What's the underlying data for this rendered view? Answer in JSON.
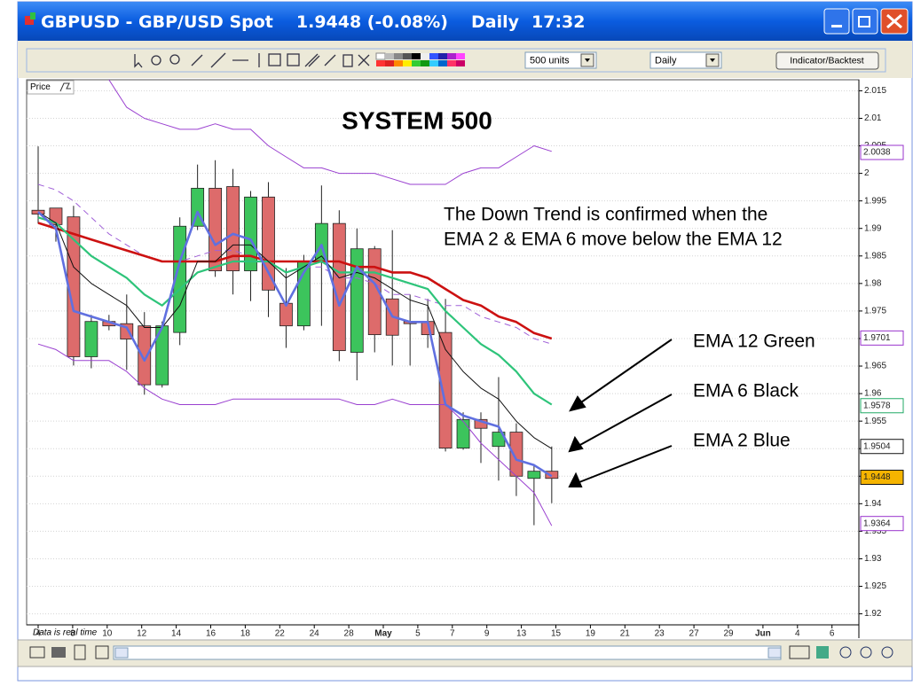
{
  "window": {
    "title": [
      "GBPUSD - GBP/USD Spot",
      "1.9448 (-0.08%)",
      "Daily",
      "17:32"
    ]
  },
  "toolbar": {
    "units": "500 units",
    "period": "Daily",
    "button": "Indicator/Backtest"
  },
  "chart_data": {
    "type": "candlestick",
    "title": "SYSTEM 500",
    "price_label": "Price",
    "footnote": "Data is real time",
    "annotations": {
      "trend": [
        "The Down Trend is confirmed when the",
        "EMA 2 & EMA 6 move below the EMA 12"
      ],
      "labels": [
        "EMA 12 Green",
        "EMA 6 Black",
        "EMA 2 Blue"
      ]
    },
    "x_labels": [
      "4",
      "8",
      "10",
      "12",
      "14",
      "16",
      "18",
      "22",
      "24",
      "28",
      "May",
      "5",
      "7",
      "9",
      "13",
      "15",
      "19",
      "21",
      "23",
      "27",
      "29",
      "Jun",
      "4",
      "6"
    ],
    "open": [
      1.9933,
      1.9937,
      1.9921,
      1.9667,
      1.9731,
      1.9727,
      1.9723,
      1.9616,
      1.9711,
      1.9904,
      1.9973,
      1.9976,
      1.9823,
      1.9957,
      1.9764,
      1.9723,
      1.9841,
      1.9909,
      1.9675,
      1.9863,
      1.9772,
      1.9731,
      1.9731,
      1.9711,
      1.9501,
      1.9553,
      1.9504,
      1.953,
      1.9446,
      1.9459
    ],
    "high": [
      2.0049,
      1.9937,
      1.9941,
      1.9743,
      1.9743,
      1.978,
      1.9748,
      1.9731,
      1.992,
      2.0016,
      2.0024,
      2.0008,
      1.9968,
      1.9984,
      1.9828,
      1.9852,
      1.9978,
      1.9933,
      1.99,
      1.9868,
      1.9897,
      1.978,
      1.9772,
      1.9772,
      1.9566,
      1.9566,
      1.963,
      1.9546,
      1.9469,
      1.9504
    ],
    "low": [
      1.9909,
      1.9876,
      1.9651,
      1.9646,
      1.9715,
      1.9643,
      1.9598,
      1.9611,
      1.9688,
      1.9897,
      1.9812,
      1.978,
      1.9768,
      1.9739,
      1.9683,
      1.9715,
      1.9723,
      1.9659,
      1.9624,
      1.9675,
      1.9651,
      1.9651,
      1.9683,
      1.9495,
      1.9498,
      1.9474,
      1.9442,
      1.9414,
      1.9361,
      1.9401
    ],
    "close": [
      1.9926,
      1.9907,
      1.9667,
      1.9731,
      1.9723,
      1.9699,
      1.9616,
      1.9723,
      1.9904,
      1.9973,
      1.9823,
      1.9823,
      1.9957,
      1.9788,
      1.9723,
      1.9841,
      1.9909,
      1.9678,
      1.9863,
      1.9707,
      1.9706,
      1.9727,
      1.9707,
      1.9501,
      1.9553,
      1.9537,
      1.953,
      1.945,
      1.9459,
      1.9446
    ],
    "up_color": "#3cc45c",
    "down_color": "#dd6b6b",
    "series": [
      {
        "color": "#9a40d0",
        "values": [
          null,
          null,
          null,
          null,
          2.017,
          2.012,
          2.01,
          2.009,
          2.008,
          2.008,
          2.009,
          2.008,
          2.008,
          2.005,
          2.003,
          2.001,
          2.001,
          2.0,
          2.0,
          2.0,
          1.999,
          1.998,
          1.998,
          1.998,
          2.0,
          2.001,
          2.001,
          2.003,
          2.005,
          2.004
        ]
      },
      {
        "color": "#9a40d0",
        "values": [
          1.969,
          1.968,
          1.966,
          1.966,
          1.966,
          1.964,
          1.961,
          1.959,
          1.958,
          1.958,
          1.958,
          1.959,
          1.959,
          1.959,
          1.959,
          1.959,
          1.959,
          1.959,
          1.958,
          1.958,
          1.959,
          1.958,
          1.958,
          1.958,
          1.955,
          1.951,
          1.948,
          1.945,
          1.942,
          1.936
        ]
      },
      {
        "color": "#a060d8",
        "style": "dashed",
        "values": [
          1.998,
          1.997,
          1.995,
          1.992,
          1.989,
          1.987,
          1.985,
          1.984,
          1.984,
          1.985,
          1.986,
          1.986,
          1.985,
          1.984,
          1.982,
          1.983,
          1.983,
          1.981,
          1.981,
          1.98,
          1.978,
          1.978,
          1.977,
          1.976,
          1.976,
          1.974,
          1.973,
          1.972,
          1.97,
          1.969
        ]
      },
      {
        "color": "#cc1111",
        "values": [
          1.991,
          1.99,
          1.989,
          1.988,
          1.987,
          1.986,
          1.985,
          1.984,
          1.984,
          1.984,
          1.984,
          1.985,
          1.985,
          1.984,
          1.984,
          1.984,
          1.984,
          1.984,
          1.983,
          1.983,
          1.982,
          1.982,
          1.981,
          1.979,
          1.977,
          1.976,
          1.974,
          1.973,
          1.971,
          1.97
        ]
      },
      {
        "color": "#2ec47a",
        "values": [
          1.992,
          1.991,
          1.988,
          1.985,
          1.983,
          1.981,
          1.978,
          1.976,
          1.979,
          1.982,
          1.983,
          1.984,
          1.984,
          1.984,
          1.982,
          1.983,
          1.984,
          1.982,
          1.982,
          1.982,
          1.981,
          1.98,
          1.979,
          1.975,
          1.972,
          1.969,
          1.967,
          1.964,
          1.96,
          1.958
        ]
      },
      {
        "color": "#111111",
        "values": [
          1.993,
          1.991,
          1.983,
          1.98,
          1.978,
          1.976,
          1.972,
          1.972,
          1.976,
          1.984,
          1.984,
          1.987,
          1.987,
          1.984,
          1.981,
          1.983,
          1.985,
          1.981,
          1.982,
          1.981,
          1.979,
          1.977,
          1.976,
          1.968,
          1.964,
          1.961,
          1.959,
          1.955,
          1.952,
          1.95
        ]
      },
      {
        "color": "#6070e0",
        "values": [
          1.993,
          1.99,
          1.975,
          1.974,
          1.973,
          1.972,
          1.966,
          1.972,
          1.984,
          1.993,
          1.987,
          1.989,
          1.988,
          1.982,
          1.976,
          1.982,
          1.987,
          1.976,
          1.983,
          1.98,
          1.974,
          1.973,
          1.973,
          1.958,
          1.956,
          1.955,
          1.954,
          1.948,
          1.947,
          1.945
        ]
      }
    ],
    "price_tags": [
      {
        "value": 2.0038,
        "color": "#9933cc"
      },
      {
        "value": 1.9701,
        "color": "#9933cc"
      },
      {
        "value": 1.9578,
        "color": "#22aa66"
      },
      {
        "value": 1.9504,
        "color": "#111111"
      },
      {
        "value": 1.9448,
        "color": "#111111",
        "fill": "#f5b400"
      },
      {
        "value": 1.9364,
        "color": "#9933cc"
      }
    ],
    "ylim": [
      1.918,
      2.017
    ],
    "yticks": [
      2.015,
      2.01,
      2.005,
      2,
      1.995,
      1.99,
      1.985,
      1.98,
      1.975,
      1.97,
      1.965,
      1.96,
      1.955,
      1.95,
      1.945,
      1.94,
      1.935,
      1.93,
      1.925,
      1.92
    ],
    "grid": true
  }
}
